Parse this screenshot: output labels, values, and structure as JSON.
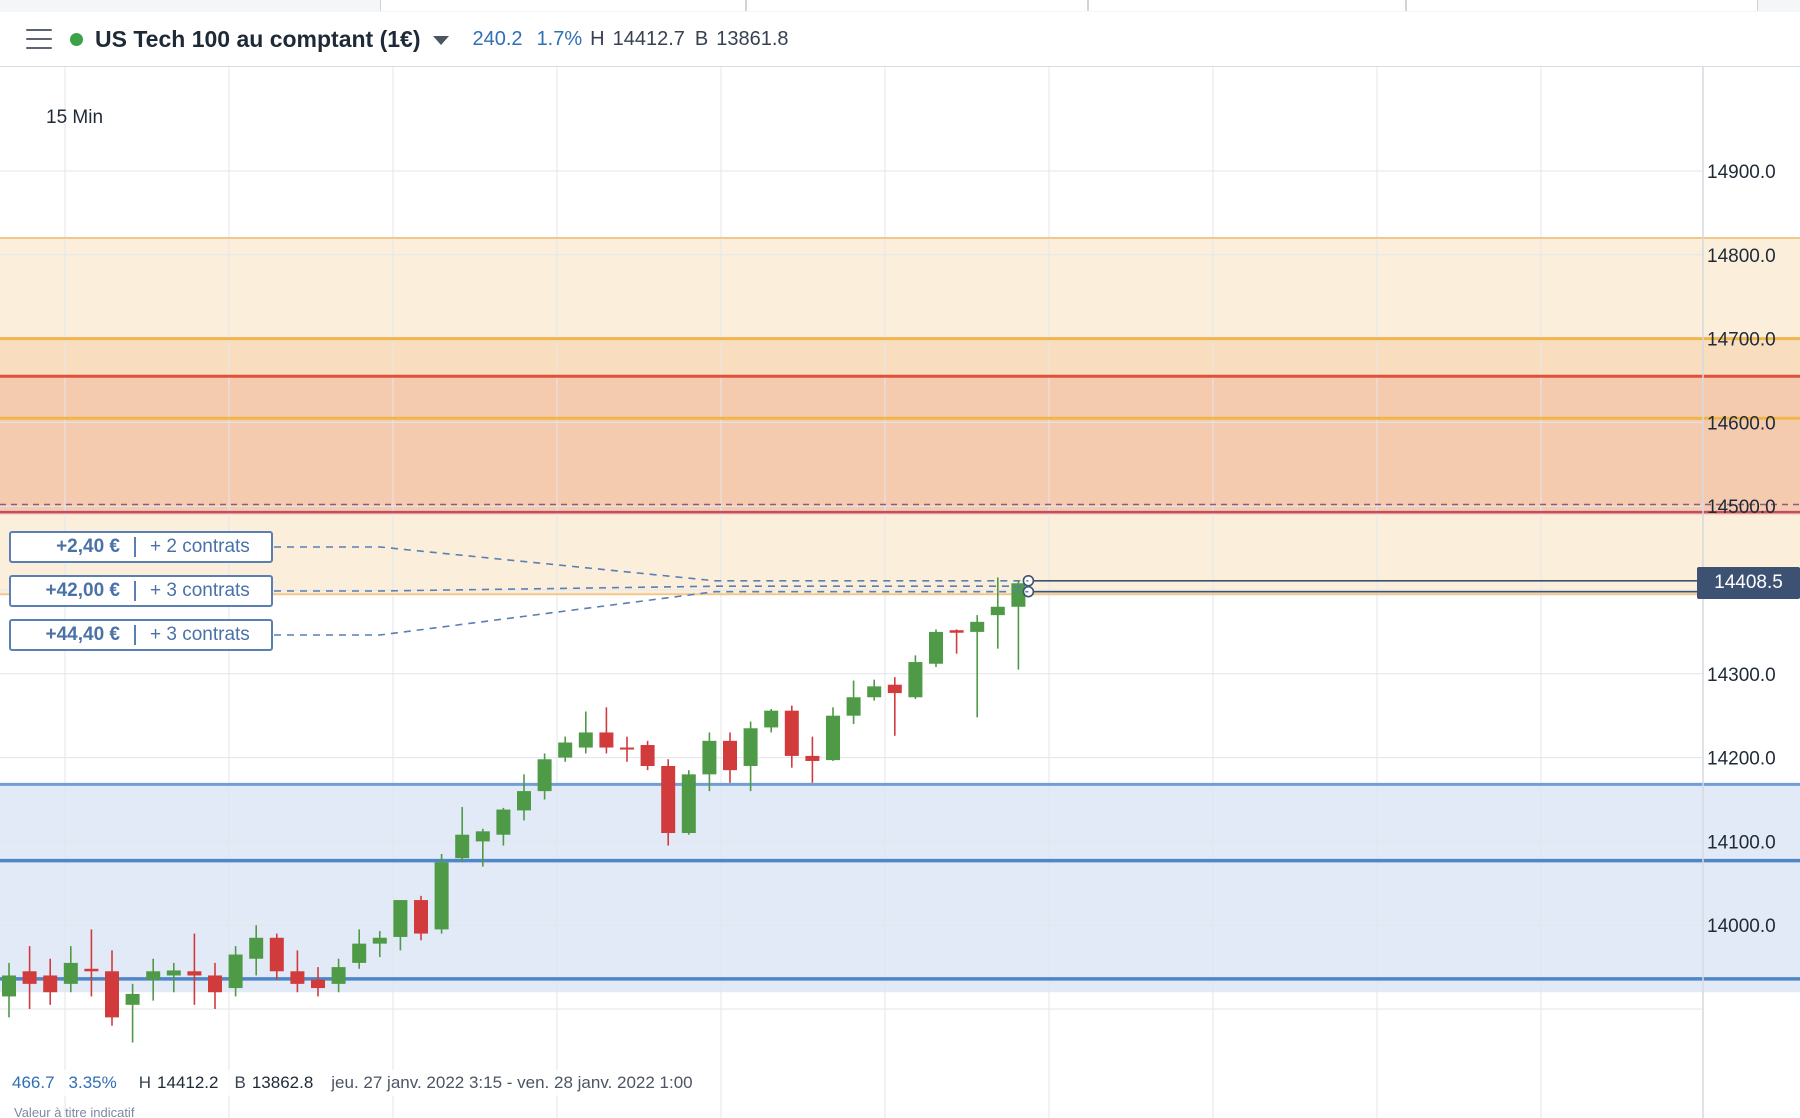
{
  "header": {
    "menu_icon": "hamburger-icon",
    "status_color": "#3aa34a",
    "instrument": "US Tech 100 au comptant (1€)",
    "change_points": "240.2",
    "change_pct": "1.7%",
    "high_label": "H",
    "high_value": "14412.7",
    "low_label": "B",
    "low_value": "13861.8"
  },
  "chart": {
    "timeframe": "15 Min",
    "current_price": "14408.5",
    "colors": {
      "up": "#4e9a46",
      "down": "#d23b3b",
      "accent_blue": "#2f6fb5"
    }
  },
  "positions": [
    {
      "pnl": "+2,40 €",
      "qty": "+ 2 contrats"
    },
    {
      "pnl": "+42,00 €",
      "qty": "+ 3 contrats"
    },
    {
      "pnl": "+44,40 €",
      "qty": "+ 3 contrats"
    }
  ],
  "footer": {
    "range_points": "466.7",
    "range_pct": "3.35%",
    "high_label": "H",
    "high_value": "14412.2",
    "low_label": "B",
    "low_value": "13862.8",
    "period": "jeu. 27 janv. 2022 3:15 - ven. 28 janv. 2022 1:00",
    "disclaimer": "Valeur à titre indicatif"
  },
  "chart_data": {
    "type": "candlestick",
    "ylim": [
      13920,
      14995
    ],
    "y_ticks": [
      "14900.0",
      "14800.0",
      "14700.0",
      "14600.0",
      "14500.0",
      "14400.0",
      "14300.0",
      "14200.0",
      "14100.0",
      "14000.0"
    ],
    "zones": [
      {
        "from": 14395,
        "to": 14820,
        "color": "#f7dcb2",
        "opacity": 0.45
      },
      {
        "from": 14490,
        "to": 14700,
        "color": "#f0b478",
        "opacity": 0.28
      },
      {
        "from": 14490,
        "to": 14655,
        "color": "#e89a80",
        "opacity": 0.28
      },
      {
        "from": 13920,
        "to": 14168,
        "color": "#c9d8ee",
        "opacity": 0.55
      }
    ],
    "levels": [
      {
        "value": 14820,
        "color": "#f3c789",
        "width": 2,
        "dash": ""
      },
      {
        "value": 14700,
        "color": "#f0b54c",
        "width": 3,
        "dash": ""
      },
      {
        "value": 14655,
        "color": "#e0503a",
        "width": 3,
        "dash": ""
      },
      {
        "value": 14605,
        "color": "#f0b54c",
        "width": 3,
        "dash": ""
      },
      {
        "value": 14502,
        "color": "#8f5a86",
        "width": 1.5,
        "dash": "6,5"
      },
      {
        "value": 14493,
        "color": "#c44a6a",
        "width": 2.5,
        "dash": ""
      },
      {
        "value": 14395,
        "color": "#f3c789",
        "width": 2,
        "dash": ""
      },
      {
        "value": 14168,
        "color": "#6f9fd6",
        "width": 3,
        "dash": ""
      },
      {
        "value": 14077,
        "color": "#4f86c8",
        "width": 3.5,
        "dash": ""
      },
      {
        "value": 13936,
        "color": "#4f86c8",
        "width": 3.5,
        "dash": ""
      }
    ],
    "entry_levels": [
      14411,
      14398
    ],
    "candles": [
      {
        "o": 13915,
        "h": 13955,
        "l": 13890,
        "c": 13940
      },
      {
        "o": 13945,
        "h": 13975,
        "l": 13900,
        "c": 13930
      },
      {
        "o": 13940,
        "h": 13960,
        "l": 13905,
        "c": 13920
      },
      {
        "o": 13930,
        "h": 13975,
        "l": 13920,
        "c": 13955
      },
      {
        "o": 13948,
        "h": 13995,
        "l": 13915,
        "c": 13945
      },
      {
        "o": 13945,
        "h": 13970,
        "l": 13880,
        "c": 13890
      },
      {
        "o": 13905,
        "h": 13930,
        "l": 13860,
        "c": 13918
      },
      {
        "o": 13935,
        "h": 13960,
        "l": 13910,
        "c": 13945
      },
      {
        "o": 13940,
        "h": 13955,
        "l": 13920,
        "c": 13946
      },
      {
        "o": 13945,
        "h": 13990,
        "l": 13905,
        "c": 13940
      },
      {
        "o": 13940,
        "h": 13955,
        "l": 13900,
        "c": 13920
      },
      {
        "o": 13925,
        "h": 13975,
        "l": 13915,
        "c": 13965
      },
      {
        "o": 13960,
        "h": 14000,
        "l": 13940,
        "c": 13985
      },
      {
        "o": 13985,
        "h": 13990,
        "l": 13935,
        "c": 13945
      },
      {
        "o": 13945,
        "h": 13970,
        "l": 13920,
        "c": 13930
      },
      {
        "o": 13935,
        "h": 13950,
        "l": 13915,
        "c": 13925
      },
      {
        "o": 13930,
        "h": 13960,
        "l": 13920,
        "c": 13950
      },
      {
        "o": 13955,
        "h": 13995,
        "l": 13948,
        "c": 13978
      },
      {
        "o": 13978,
        "h": 13993,
        "l": 13962,
        "c": 13985
      },
      {
        "o": 13986,
        "h": 14030,
        "l": 13970,
        "c": 14030
      },
      {
        "o": 14030,
        "h": 14035,
        "l": 13982,
        "c": 13990
      },
      {
        "o": 13995,
        "h": 14085,
        "l": 13990,
        "c": 14075
      },
      {
        "o": 14080,
        "h": 14141,
        "l": 14075,
        "c": 14108
      },
      {
        "o": 14100,
        "h": 14115,
        "l": 14070,
        "c": 14112
      },
      {
        "o": 14108,
        "h": 14140,
        "l": 14095,
        "c": 14138
      },
      {
        "o": 14137,
        "h": 14180,
        "l": 14125,
        "c": 14160
      },
      {
        "o": 14160,
        "h": 14205,
        "l": 14150,
        "c": 14198
      },
      {
        "o": 14200,
        "h": 14225,
        "l": 14195,
        "c": 14218
      },
      {
        "o": 14212,
        "h": 14255,
        "l": 14205,
        "c": 14230
      },
      {
        "o": 14230,
        "h": 14260,
        "l": 14205,
        "c": 14212
      },
      {
        "o": 14212,
        "h": 14225,
        "l": 14195,
        "c": 14210
      },
      {
        "o": 14215,
        "h": 14220,
        "l": 14185,
        "c": 14190
      },
      {
        "o": 14190,
        "h": 14198,
        "l": 14095,
        "c": 14110
      },
      {
        "o": 14110,
        "h": 14185,
        "l": 14108,
        "c": 14180
      },
      {
        "o": 14180,
        "h": 14230,
        "l": 14160,
        "c": 14220
      },
      {
        "o": 14220,
        "h": 14230,
        "l": 14170,
        "c": 14185
      },
      {
        "o": 14190,
        "h": 14243,
        "l": 14160,
        "c": 14235
      },
      {
        "o": 14236,
        "h": 14258,
        "l": 14230,
        "c": 14256
      },
      {
        "o": 14256,
        "h": 14262,
        "l": 14188,
        "c": 14202
      },
      {
        "o": 14202,
        "h": 14225,
        "l": 14170,
        "c": 14196
      },
      {
        "o": 14197,
        "h": 14260,
        "l": 14196,
        "c": 14250
      },
      {
        "o": 14250,
        "h": 14292,
        "l": 14240,
        "c": 14272
      },
      {
        "o": 14272,
        "h": 14293,
        "l": 14268,
        "c": 14285
      },
      {
        "o": 14287,
        "h": 14296,
        "l": 14226,
        "c": 14277
      },
      {
        "o": 14272,
        "h": 14322,
        "l": 14270,
        "c": 14314
      },
      {
        "o": 14312,
        "h": 14353,
        "l": 14308,
        "c": 14350
      },
      {
        "o": 14352,
        "h": 14353,
        "l": 14324,
        "c": 14349
      },
      {
        "o": 14350,
        "h": 14370,
        "l": 14248,
        "c": 14362
      },
      {
        "o": 14370,
        "h": 14415,
        "l": 14330,
        "c": 14380
      },
      {
        "o": 14380,
        "h": 14412,
        "l": 14305,
        "c": 14408
      }
    ]
  }
}
